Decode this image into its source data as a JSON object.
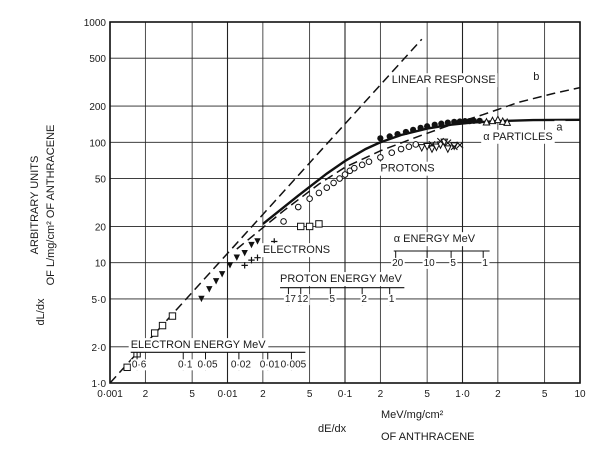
{
  "chart_data": {
    "type": "scatter",
    "xscale": "log",
    "yscale": "log",
    "xlim": [
      0.001,
      10
    ],
    "ylim": [
      1,
      1000
    ],
    "ylabel_lines": [
      "ARBITRARY UNITS",
      "OF L/mg/cm² OF ANTHRACENE"
    ],
    "ylabel_short": "dL/dx",
    "xlabel_short": "dE/dx",
    "xlabel_units": [
      "MeV/mg/cm²",
      "OF ANTHRACENE"
    ],
    "x_ticks": [
      {
        "v": 0.001,
        "label": "0·001",
        "major": true
      },
      {
        "v": 0.002,
        "label": "2",
        "major": false
      },
      {
        "v": 0.005,
        "label": "5",
        "major": false
      },
      {
        "v": 0.01,
        "label": "0·01",
        "major": true
      },
      {
        "v": 0.02,
        "label": "2",
        "major": false
      },
      {
        "v": 0.05,
        "label": "5",
        "major": false
      },
      {
        "v": 0.1,
        "label": "0·1",
        "major": true
      },
      {
        "v": 0.2,
        "label": "2",
        "major": false
      },
      {
        "v": 0.5,
        "label": "5",
        "major": false
      },
      {
        "v": 1,
        "label": "1·0",
        "major": true
      },
      {
        "v": 2,
        "label": "2",
        "major": false
      },
      {
        "v": 5,
        "label": "5",
        "major": false
      },
      {
        "v": 10,
        "label": "10",
        "major": true
      }
    ],
    "y_ticks": [
      {
        "v": 1,
        "label": "1·0"
      },
      {
        "v": 2,
        "label": "2·0"
      },
      {
        "v": 5,
        "label": "5·0"
      },
      {
        "v": 10,
        "label": "10"
      },
      {
        "v": 20,
        "label": "20"
      },
      {
        "v": 50,
        "label": "50"
      },
      {
        "v": 100,
        "label": "100"
      },
      {
        "v": 200,
        "label": "200"
      },
      {
        "v": 500,
        "label": "500"
      },
      {
        "v": 1000,
        "label": "1000"
      }
    ],
    "curves": [
      {
        "name": "LINEAR RESPONSE",
        "style": "dashed",
        "points": [
          [
            0.001,
            1.0
          ],
          [
            0.45,
            720
          ]
        ]
      },
      {
        "name": "b",
        "style": "dashed",
        "points": [
          [
            0.012,
            13
          ],
          [
            0.03,
            27
          ],
          [
            0.06,
            45
          ],
          [
            0.1,
            62
          ],
          [
            0.2,
            85
          ],
          [
            0.4,
            110
          ],
          [
            0.8,
            140
          ],
          [
            1.5,
            170
          ],
          [
            3,
            215
          ],
          [
            6,
            255
          ],
          [
            10,
            285
          ]
        ]
      },
      {
        "name": "a",
        "style": "solid",
        "points": [
          [
            0.02,
            21
          ],
          [
            0.04,
            36
          ],
          [
            0.07,
            55
          ],
          [
            0.1,
            70
          ],
          [
            0.15,
            88
          ],
          [
            0.2,
            100
          ],
          [
            0.3,
            115
          ],
          [
            0.5,
            130
          ],
          [
            0.8,
            140
          ],
          [
            1.2,
            146
          ],
          [
            2,
            150
          ],
          [
            4,
            153
          ],
          [
            10,
            154
          ]
        ]
      }
    ],
    "series": [
      {
        "name": "ELECTRONS",
        "marker": "square",
        "points": [
          [
            0.0014,
            1.35
          ],
          [
            0.0017,
            1.75
          ],
          [
            0.002,
            2.1
          ],
          [
            0.0024,
            2.6
          ],
          [
            0.0028,
            3.0
          ],
          [
            0.0034,
            3.6
          ],
          [
            0.042,
            20
          ],
          [
            0.05,
            20
          ],
          [
            0.06,
            21
          ]
        ]
      },
      {
        "name": "ELECTRONS",
        "marker": "cross",
        "points": [
          [
            0.014,
            9.5
          ],
          [
            0.016,
            10.5
          ],
          [
            0.018,
            11
          ],
          [
            0.021,
            12
          ],
          [
            0.025,
            15
          ]
        ]
      },
      {
        "name": "electrons-filled",
        "marker": "triangle-down-filled",
        "points": [
          [
            0.006,
            5
          ],
          [
            0.007,
            6
          ],
          [
            0.008,
            7
          ],
          [
            0.009,
            8
          ],
          [
            0.0105,
            9.5
          ],
          [
            0.012,
            11
          ],
          [
            0.014,
            12
          ],
          [
            0.016,
            14
          ],
          [
            0.018,
            15
          ]
        ]
      },
      {
        "name": "PROTONS",
        "marker": "circle-open",
        "points": [
          [
            0.03,
            22
          ],
          [
            0.04,
            29
          ],
          [
            0.05,
            34
          ],
          [
            0.06,
            38
          ],
          [
            0.07,
            42
          ],
          [
            0.08,
            46
          ],
          [
            0.09,
            50
          ],
          [
            0.1,
            54
          ],
          [
            0.11,
            58
          ],
          [
            0.12,
            61
          ],
          [
            0.14,
            65
          ],
          [
            0.16,
            69
          ],
          [
            0.2,
            75
          ],
          [
            0.25,
            82
          ],
          [
            0.3,
            88
          ],
          [
            0.35,
            92
          ],
          [
            0.4,
            96
          ]
        ]
      },
      {
        "name": "PROTONS",
        "marker": "triangle-down-open",
        "points": [
          [
            0.45,
            90
          ],
          [
            0.5,
            92
          ],
          [
            0.55,
            88
          ],
          [
            0.6,
            91
          ],
          [
            0.65,
            95
          ],
          [
            0.7,
            100
          ],
          [
            0.75,
            88
          ],
          [
            0.85,
            93
          ]
        ]
      },
      {
        "name": "PROTONS",
        "marker": "x",
        "points": [
          [
            0.55,
            96
          ],
          [
            0.65,
            102
          ],
          [
            0.75,
            99
          ],
          [
            0.85,
            92
          ],
          [
            0.95,
            95
          ]
        ]
      },
      {
        "name": "α PARTICLES",
        "marker": "circle-filled",
        "points": [
          [
            0.2,
            108
          ],
          [
            0.24,
            112
          ],
          [
            0.28,
            117
          ],
          [
            0.33,
            122
          ],
          [
            0.38,
            127
          ],
          [
            0.44,
            132
          ],
          [
            0.5,
            136
          ],
          [
            0.58,
            140
          ],
          [
            0.66,
            143
          ],
          [
            0.75,
            146
          ],
          [
            0.85,
            148
          ],
          [
            0.95,
            149
          ],
          [
            1.05,
            150
          ],
          [
            1.15,
            150
          ],
          [
            1.25,
            151
          ],
          [
            1.4,
            151
          ]
        ]
      },
      {
        "name": "α PARTICLES",
        "marker": "triangle-up-open",
        "points": [
          [
            1.6,
            148
          ],
          [
            1.8,
            152
          ],
          [
            2.0,
            155
          ],
          [
            2.2,
            150
          ],
          [
            2.4,
            147
          ]
        ]
      }
    ],
    "annotations": [
      {
        "text": "LINEAR RESPONSE",
        "x": 0.25,
        "y": 310
      },
      {
        "text": "b",
        "x": 4.0,
        "y": 330
      },
      {
        "text": "a",
        "x": 6.3,
        "y": 125
      },
      {
        "text": "α  PARTICLES",
        "x": 1.5,
        "y": 105
      },
      {
        "text": "PROTONS",
        "x": 0.2,
        "y": 57
      },
      {
        "text": "ELECTRONS",
        "x": 0.02,
        "y": 12
      }
    ],
    "energy_scales": [
      {
        "title": "ELECTRON ENERGY MeV",
        "ticks": [
          {
            "x": 0.0017,
            "label": "0·6"
          },
          {
            "x": 0.0042,
            "label": "0·1"
          },
          {
            "x": 0.0065,
            "label": "0·05"
          },
          {
            "x": 0.0125,
            "label": "0·02"
          },
          {
            "x": 0.022,
            "label": "0·01"
          },
          {
            "x": 0.035,
            "label": "0·005"
          }
        ],
        "axis_y": 1.8,
        "label_y": 1.35,
        "title_y": 1.95,
        "title_x": 0.0015,
        "x_start": 0.0015,
        "x_end": 0.046
      },
      {
        "title": "PROTON ENERGY MeV",
        "ticks": [
          {
            "x": 0.033,
            "label": "17"
          },
          {
            "x": 0.042,
            "label": "12"
          },
          {
            "x": 0.075,
            "label": "5"
          },
          {
            "x": 0.14,
            "label": "2"
          },
          {
            "x": 0.24,
            "label": "1"
          }
        ],
        "axis_y": 6.2,
        "label_y": 4.7,
        "title_y": 6.9,
        "title_x": 0.028,
        "x_start": 0.028,
        "x_end": 0.32
      },
      {
        "title": "α ENERGY MeV",
        "ticks": [
          {
            "x": 0.27,
            "label": "20"
          },
          {
            "x": 0.5,
            "label": "10"
          },
          {
            "x": 0.8,
            "label": "5"
          },
          {
            "x": 1.5,
            "label": "1"
          }
        ],
        "axis_y": 12.5,
        "label_y": 9.4,
        "title_y": 14.8,
        "title_x": 0.26,
        "x_start": 0.26,
        "x_end": 1.7
      }
    ]
  }
}
